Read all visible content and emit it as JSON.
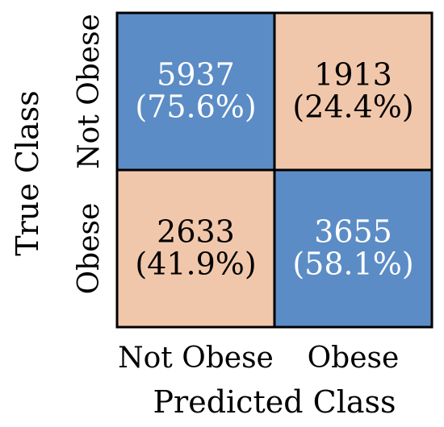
{
  "chart_data": {
    "type": "heatmap",
    "title": "",
    "xlabel": "Predicted Class",
    "ylabel": "True Class",
    "x_categories": [
      "Not Obese",
      "Obese"
    ],
    "y_categories": [
      "Not Obese",
      "Obese"
    ],
    "cells": [
      {
        "row": 0,
        "col": 0,
        "count": "5937",
        "percent": "(75.6%)",
        "correct": true
      },
      {
        "row": 0,
        "col": 1,
        "count": "1913",
        "percent": "(24.4%)",
        "correct": false
      },
      {
        "row": 1,
        "col": 0,
        "count": "2633",
        "percent": "(41.9%)",
        "correct": false
      },
      {
        "row": 1,
        "col": 1,
        "count": "3655",
        "percent": "(58.1%)",
        "correct": true
      }
    ],
    "colors": {
      "correct_fill": "#5b8cc6",
      "incorrect_fill": "#f1c7ab",
      "correct_text": "#ffffff",
      "incorrect_text": "#000000",
      "border": "#000000"
    },
    "legend": "none",
    "grid": false
  }
}
